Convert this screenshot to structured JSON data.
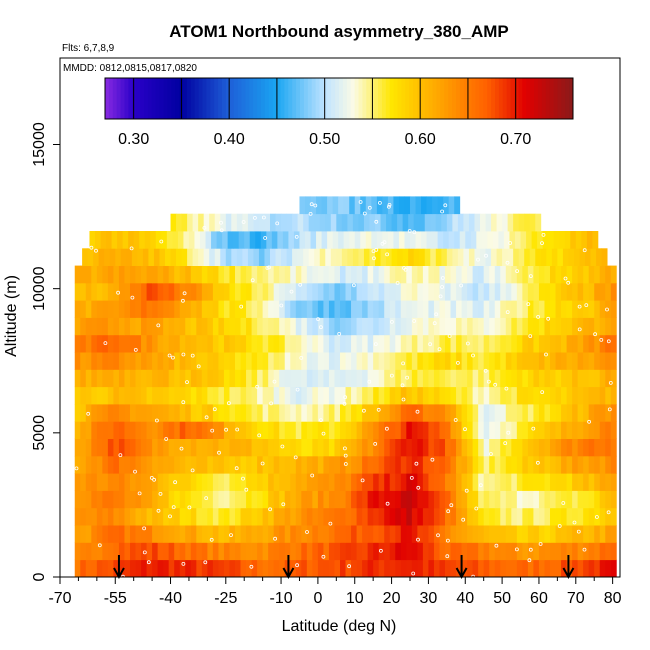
{
  "chart_data": {
    "type": "heatmap",
    "title": "ATOM1 Northbound asymmetry_380_AMP",
    "flights_note": "Flts: 6,7,8,9",
    "dates_note": "MMDD: 0812,0815,0817,0820",
    "xlabel": "Latitude (deg N)",
    "ylabel": "Altitude (m)",
    "xlim": [
      -70,
      82
    ],
    "ylim": [
      0,
      18000
    ],
    "x_ticks": [
      -70,
      -55,
      -40,
      -25,
      -10,
      0,
      10,
      20,
      30,
      40,
      50,
      60,
      70,
      80
    ],
    "x_tick_labels": [
      "-70",
      "-55",
      "-40",
      "-25",
      "-10",
      "0",
      "10",
      "20",
      "30",
      "40",
      "50",
      "60",
      "70",
      "80"
    ],
    "y_ticks": [
      0,
      5000,
      10000,
      15000
    ],
    "y_tick_labels": [
      "0",
      "5000",
      "10000",
      "15000"
    ],
    "colorbar": {
      "range": [
        0.27,
        0.76
      ],
      "ticks": [
        0.3,
        0.4,
        0.5,
        0.6,
        0.7
      ],
      "tick_labels": [
        "0.30",
        "0.40",
        "0.50",
        "0.60",
        "0.70"
      ],
      "segment_edges": [
        0.27,
        0.3,
        0.35,
        0.4,
        0.45,
        0.5,
        0.55,
        0.6,
        0.65,
        0.7,
        0.76
      ]
    },
    "color_stops": [
      {
        "v": 0.27,
        "c": "#8a2be2"
      },
      {
        "v": 0.3,
        "c": "#2a00c8"
      },
      {
        "v": 0.35,
        "c": "#0000a0"
      },
      {
        "v": 0.4,
        "c": "#1e5fd8"
      },
      {
        "v": 0.45,
        "c": "#1aa6f2"
      },
      {
        "v": 0.5,
        "c": "#bfe3ff"
      },
      {
        "v": 0.53,
        "c": "#fbfbe6"
      },
      {
        "v": 0.57,
        "c": "#ffe600"
      },
      {
        "v": 0.62,
        "c": "#ffa500"
      },
      {
        "v": 0.67,
        "c": "#ff6000"
      },
      {
        "v": 0.71,
        "c": "#e00000"
      },
      {
        "v": 0.76,
        "c": "#8b1a1a"
      }
    ],
    "altitude_levels": [
      0,
      600,
      1200,
      1800,
      2400,
      3000,
      3600,
      4200,
      4800,
      5400,
      6000,
      6600,
      7200,
      7800,
      8400,
      9000,
      9600,
      10200,
      10800,
      11400,
      12000,
      12600
    ],
    "latitude_nodes": [
      -65,
      -55,
      -45,
      -35,
      -25,
      -15,
      -5,
      5,
      15,
      25,
      35,
      45,
      55,
      65,
      75,
      80
    ],
    "layers": [
      {
        "alt": 0,
        "lat_range": [
          -66,
          80
        ],
        "values": [
          0.66,
          0.68,
          0.7,
          0.69,
          0.68,
          0.66,
          0.67,
          0.68,
          0.69,
          0.7,
          0.68,
          0.67,
          0.66,
          0.67,
          0.69,
          0.7
        ]
      },
      {
        "alt": 600,
        "lat_range": [
          -66,
          80
        ],
        "values": [
          0.63,
          0.67,
          0.68,
          0.66,
          0.64,
          0.64,
          0.66,
          0.67,
          0.69,
          0.71,
          0.66,
          0.65,
          0.63,
          0.64,
          0.65,
          0.67
        ]
      },
      {
        "alt": 1200,
        "lat_range": [
          -66,
          80
        ],
        "values": [
          0.62,
          0.66,
          0.64,
          0.62,
          0.6,
          0.62,
          0.64,
          0.66,
          0.68,
          0.7,
          0.64,
          0.6,
          0.58,
          0.59,
          0.61,
          0.62
        ]
      },
      {
        "alt": 1800,
        "lat_range": [
          -66,
          80
        ],
        "values": [
          0.63,
          0.64,
          0.6,
          0.58,
          0.56,
          0.6,
          0.63,
          0.65,
          0.69,
          0.72,
          0.66,
          0.56,
          0.55,
          0.56,
          0.58,
          0.6
        ]
      },
      {
        "alt": 2400,
        "lat_range": [
          -66,
          80
        ],
        "values": [
          0.64,
          0.65,
          0.61,
          0.57,
          0.55,
          0.58,
          0.62,
          0.64,
          0.7,
          0.72,
          0.66,
          0.55,
          0.54,
          0.55,
          0.57,
          0.61
        ]
      },
      {
        "alt": 3000,
        "lat_range": [
          -66,
          80
        ],
        "values": [
          0.63,
          0.64,
          0.62,
          0.58,
          0.56,
          0.59,
          0.62,
          0.63,
          0.68,
          0.71,
          0.65,
          0.54,
          0.56,
          0.58,
          0.6,
          0.62
        ]
      },
      {
        "alt": 3600,
        "lat_range": [
          -66,
          80
        ],
        "values": [
          0.62,
          0.66,
          0.63,
          0.6,
          0.59,
          0.6,
          0.61,
          0.62,
          0.66,
          0.7,
          0.66,
          0.55,
          0.58,
          0.61,
          0.63,
          0.64
        ]
      },
      {
        "alt": 4200,
        "lat_range": [
          -66,
          80
        ],
        "values": [
          0.62,
          0.68,
          0.63,
          0.62,
          0.61,
          0.6,
          0.57,
          0.58,
          0.64,
          0.71,
          0.67,
          0.53,
          0.59,
          0.63,
          0.66,
          0.66
        ]
      },
      {
        "alt": 4800,
        "lat_range": [
          -66,
          80
        ],
        "values": [
          0.61,
          0.67,
          0.64,
          0.67,
          0.62,
          0.58,
          0.56,
          0.57,
          0.63,
          0.7,
          0.66,
          0.52,
          0.56,
          0.6,
          0.64,
          0.65
        ]
      },
      {
        "alt": 5400,
        "lat_range": [
          -66,
          80
        ],
        "values": [
          0.6,
          0.64,
          0.62,
          0.6,
          0.58,
          0.55,
          0.54,
          0.55,
          0.6,
          0.66,
          0.64,
          0.52,
          0.55,
          0.58,
          0.62,
          0.64
        ]
      },
      {
        "alt": 6000,
        "lat_range": [
          -66,
          80
        ],
        "values": [
          0.59,
          0.6,
          0.59,
          0.58,
          0.56,
          0.54,
          0.52,
          0.53,
          0.56,
          0.6,
          0.57,
          0.54,
          0.57,
          0.58,
          0.6,
          0.61
        ]
      },
      {
        "alt": 6600,
        "lat_range": [
          -66,
          80
        ],
        "values": [
          0.61,
          0.62,
          0.61,
          0.6,
          0.58,
          0.55,
          0.51,
          0.51,
          0.53,
          0.56,
          0.56,
          0.55,
          0.58,
          0.59,
          0.6,
          0.62
        ]
      },
      {
        "alt": 7200,
        "lat_range": [
          -66,
          80
        ],
        "values": [
          0.63,
          0.64,
          0.62,
          0.6,
          0.58,
          0.56,
          0.53,
          0.52,
          0.54,
          0.56,
          0.58,
          0.56,
          0.59,
          0.61,
          0.62,
          0.64
        ]
      },
      {
        "alt": 7800,
        "lat_range": [
          -66,
          80
        ],
        "values": [
          0.64,
          0.67,
          0.63,
          0.61,
          0.59,
          0.57,
          0.54,
          0.51,
          0.52,
          0.54,
          0.56,
          0.55,
          0.58,
          0.6,
          0.63,
          0.66
        ]
      },
      {
        "alt": 8400,
        "lat_range": [
          -66,
          80
        ],
        "values": [
          0.62,
          0.63,
          0.62,
          0.6,
          0.58,
          0.56,
          0.52,
          0.49,
          0.5,
          0.53,
          0.54,
          0.53,
          0.56,
          0.59,
          0.61,
          0.63
        ]
      },
      {
        "alt": 9000,
        "lat_range": [
          -66,
          80
        ],
        "values": [
          0.61,
          0.62,
          0.66,
          0.62,
          0.57,
          0.55,
          0.48,
          0.47,
          0.49,
          0.52,
          0.52,
          0.51,
          0.55,
          0.58,
          0.6,
          0.62
        ]
      },
      {
        "alt": 9600,
        "lat_range": [
          -66,
          80
        ],
        "values": [
          0.6,
          0.61,
          0.68,
          0.64,
          0.58,
          0.55,
          0.5,
          0.48,
          0.5,
          0.53,
          0.52,
          0.5,
          0.54,
          0.58,
          0.61,
          0.63
        ]
      },
      {
        "alt": 10200,
        "lat_range": [
          -66,
          80
        ],
        "values": [
          0.61,
          0.62,
          0.62,
          0.6,
          0.57,
          0.55,
          0.53,
          0.51,
          0.52,
          0.54,
          0.53,
          0.51,
          0.55,
          0.58,
          0.6,
          0.62
        ]
      },
      {
        "alt": 10800,
        "lat_range": [
          -64,
          78
        ],
        "values": [
          0.6,
          0.61,
          0.6,
          0.56,
          0.5,
          0.48,
          0.52,
          0.55,
          0.56,
          0.58,
          0.55,
          0.52,
          0.55,
          0.58,
          0.6,
          0.61
        ]
      },
      {
        "alt": 11400,
        "lat_range": [
          -62,
          76
        ],
        "values": [
          0.59,
          0.6,
          0.58,
          0.54,
          0.47,
          0.46,
          0.5,
          0.52,
          0.53,
          0.52,
          0.5,
          0.52,
          0.55,
          0.58,
          0.6,
          0.6
        ]
      },
      {
        "alt": 12000,
        "lat_range": [
          -40,
          60
        ],
        "values": [
          0.58,
          0.58,
          0.57,
          0.55,
          0.52,
          0.5,
          0.5,
          0.49,
          0.48,
          0.47,
          0.49,
          0.52,
          0.55,
          0.57,
          0.58,
          0.58
        ]
      },
      {
        "alt": 12600,
        "lat_range": [
          -5,
          38
        ],
        "values": [
          0.5,
          0.5,
          0.5,
          0.5,
          0.5,
          0.5,
          0.49,
          0.48,
          0.47,
          0.46,
          0.46,
          0.48,
          0.5,
          0.5,
          0.5,
          0.5
        ]
      }
    ],
    "layer_thickness": 600,
    "arrow_latitudes": [
      -54,
      -8,
      39,
      68
    ],
    "colors": {
      "text": "#000000",
      "axis": "#000000",
      "marker": "#ffffff",
      "background": "#ffffff"
    }
  }
}
